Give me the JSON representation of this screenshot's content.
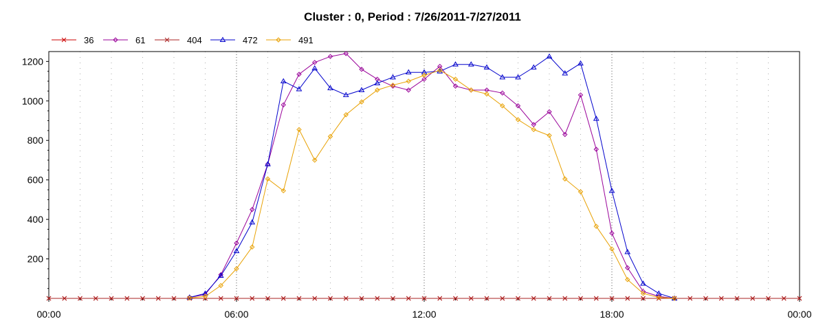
{
  "chart_data": {
    "type": "line",
    "title": "Cluster : 0, Period : 7/26/2011-7/27/2011",
    "xlabel": "",
    "ylabel": "",
    "x_tick_labels": [
      "00:00",
      "06:00",
      "12:00",
      "18:00",
      "00:00"
    ],
    "x_range_hours": [
      0,
      24
    ],
    "ylim": [
      0,
      1250
    ],
    "y_ticks": [
      200,
      400,
      600,
      800,
      1000,
      1200
    ],
    "grid": true,
    "legend_position": "top-left",
    "x_hours": [
      0,
      0.5,
      1,
      1.5,
      2,
      2.5,
      3,
      3.5,
      4,
      4.5,
      5,
      5.5,
      6,
      6.5,
      7,
      7.5,
      8,
      8.5,
      9,
      9.5,
      10,
      10.5,
      11,
      11.5,
      12,
      12.5,
      13,
      13.5,
      14,
      14.5,
      15,
      15.5,
      16,
      16.5,
      17,
      17.5,
      18,
      18.5,
      19,
      19.5,
      20,
      20.5,
      21,
      21.5,
      22,
      22.5,
      23,
      23.5,
      24
    ],
    "series": [
      {
        "name": "36",
        "color": "#cc0000",
        "marker": "x",
        "values": [
          0,
          0,
          0,
          0,
          0,
          0,
          0,
          0,
          0,
          0,
          0,
          0,
          0,
          0,
          0,
          0,
          0,
          0,
          0,
          0,
          0,
          0,
          0,
          0,
          0,
          0,
          0,
          0,
          0,
          0,
          0,
          0,
          0,
          0,
          0,
          0,
          0,
          0,
          0,
          0,
          0,
          0,
          0,
          0,
          0,
          0,
          0,
          0,
          0
        ]
      },
      {
        "name": "61",
        "color": "#990099",
        "marker": "diamond",
        "values": [
          null,
          null,
          null,
          null,
          null,
          null,
          null,
          null,
          null,
          5,
          20,
          120,
          280,
          450,
          680,
          980,
          1135,
          1195,
          1225,
          1240,
          1160,
          1110,
          1075,
          1055,
          1110,
          1175,
          1075,
          1055,
          1055,
          1040,
          975,
          880,
          945,
          830,
          1030,
          755,
          330,
          155,
          35,
          10,
          0,
          null,
          null,
          null,
          null,
          null,
          null,
          null,
          null
        ]
      },
      {
        "name": "404",
        "color": "#aa2222",
        "marker": "x",
        "values": [
          0,
          0,
          0,
          0,
          0,
          0,
          0,
          0,
          0,
          0,
          0,
          0,
          0,
          0,
          0,
          0,
          0,
          0,
          0,
          0,
          0,
          0,
          0,
          0,
          0,
          0,
          0,
          0,
          0,
          0,
          0,
          0,
          0,
          0,
          0,
          0,
          0,
          0,
          0,
          0,
          0,
          0,
          0,
          0,
          0,
          0,
          0,
          0,
          0
        ]
      },
      {
        "name": "472",
        "color": "#0000cc",
        "marker": "triangle",
        "values": [
          null,
          null,
          null,
          null,
          null,
          null,
          null,
          null,
          null,
          5,
          25,
          115,
          240,
          385,
          680,
          1100,
          1060,
          1165,
          1065,
          1030,
          1055,
          1090,
          1120,
          1145,
          1145,
          1150,
          1185,
          1185,
          1170,
          1120,
          1120,
          1170,
          1225,
          1140,
          1190,
          910,
          545,
          235,
          75,
          25,
          0,
          null,
          null,
          null,
          null,
          null,
          null,
          null,
          null
        ]
      },
      {
        "name": "491",
        "color": "#e8a000",
        "marker": "diamond",
        "values": [
          null,
          null,
          null,
          null,
          null,
          null,
          null,
          null,
          null,
          2,
          10,
          65,
          150,
          260,
          605,
          545,
          855,
          700,
          820,
          930,
          995,
          1055,
          1080,
          1100,
          1130,
          1155,
          1110,
          1055,
          1035,
          975,
          905,
          855,
          825,
          605,
          540,
          365,
          250,
          95,
          25,
          5,
          0,
          null,
          null,
          null,
          null,
          null,
          null,
          null,
          null
        ]
      }
    ]
  }
}
